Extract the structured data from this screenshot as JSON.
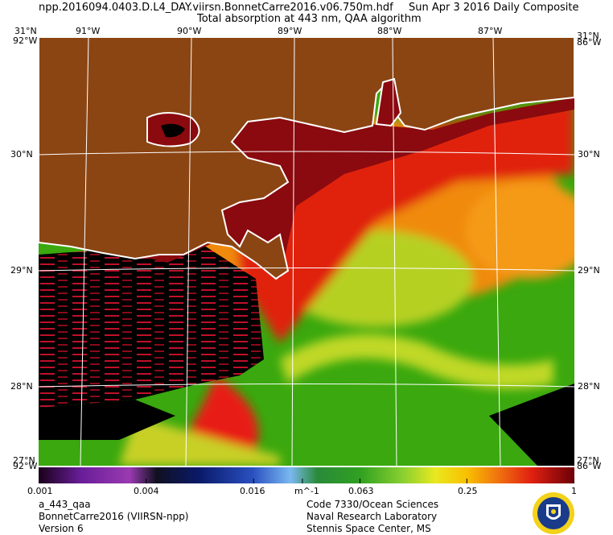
{
  "header": {
    "filename": "npp.2016094.0403.D.L4_DAY.viirsn.BonnetCarre2016.v06.750m.hdf",
    "date": "Sun Apr  3 2016 Daily Composite",
    "subtitle": "Total absorption at 443 nm, QAA algorithm"
  },
  "map": {
    "lon_labels": [
      "91°W",
      "90°W",
      "89°W",
      "88°W",
      "87°W"
    ],
    "lat_labels": [
      "30°N",
      "29°N",
      "28°N"
    ],
    "corner_top_left": "31°N",
    "corner_top_left_lon": "92°W",
    "corner_top_right": "31°N",
    "corner_top_right_lon": "86°W",
    "corner_bottom_left": "27°N",
    "corner_bottom_left_lon": "92°W",
    "corner_bottom_right": "27°N",
    "corner_bottom_right_lon": "86°W",
    "colors": {
      "land": "#8b4513",
      "coast": "#ffffff",
      "no_data": "#000000",
      "grid": "#ffffff"
    }
  },
  "colorbar": {
    "ticks": [
      "0.001",
      "0.004",
      "0.016",
      "0.063",
      "0.25",
      "1"
    ],
    "tick_values": [
      0.001,
      0.004,
      0.016,
      0.063,
      0.25,
      1
    ],
    "unit": "m^-1",
    "unit_value": 0.03,
    "scale": "log"
  },
  "footer": {
    "left": [
      "a_443_qaa",
      "BonnetCarre2016 (VIIRSN-npp)",
      "Version 6"
    ],
    "right": [
      "Code 7330/Ocean Sciences",
      "Naval Research Laboratory",
      "Stennis Space Center, MS"
    ]
  },
  "seal_label": "NRL"
}
